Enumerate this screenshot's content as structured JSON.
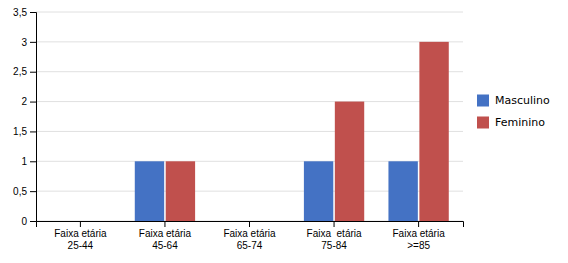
{
  "chart_data": {
    "type": "bar",
    "categories": [
      "Faixa etária\n25-44",
      "Faixa etária\n45-64",
      "Faixa etária\n65-74",
      "Faixa  etária\n75-84",
      "Faixa etária\n>=85"
    ],
    "series": [
      {
        "name": "Masculino",
        "color": "#4472C4",
        "values": [
          0,
          1,
          0,
          1,
          1
        ]
      },
      {
        "name": "Feminino",
        "color": "#C0504D",
        "values": [
          0,
          1,
          0,
          2,
          3
        ]
      }
    ],
    "ylim": [
      0,
      3.5
    ],
    "yticks": [
      0,
      {
        "value": 0.5,
        "label": "0,5"
      },
      1,
      {
        "value": 1.5,
        "label": "1,5"
      },
      2,
      {
        "value": 2.5,
        "label": "2,5"
      },
      3,
      {
        "value": 3.5,
        "label": "3,5"
      }
    ],
    "grid": true,
    "legend": "right"
  }
}
